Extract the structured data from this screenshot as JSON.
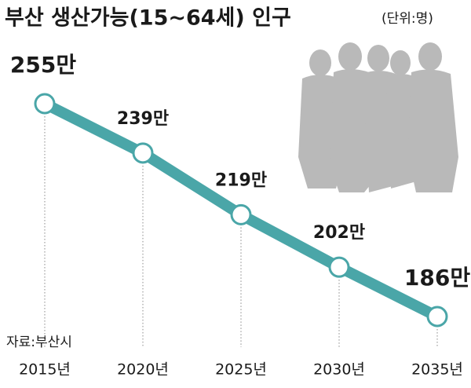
{
  "chart_data": {
    "type": "line",
    "title": "부산 생산가능(15~64세) 인구",
    "unit": "(단위:명)",
    "source": "자료:부산시",
    "categories": [
      "2015년",
      "2020년",
      "2025년",
      "2030년",
      "2035년"
    ],
    "values": [
      255,
      239,
      219,
      202,
      186
    ],
    "value_labels": [
      "255만",
      "239만",
      "219만",
      "202만",
      "186만"
    ],
    "color": "#4aa6a8"
  }
}
